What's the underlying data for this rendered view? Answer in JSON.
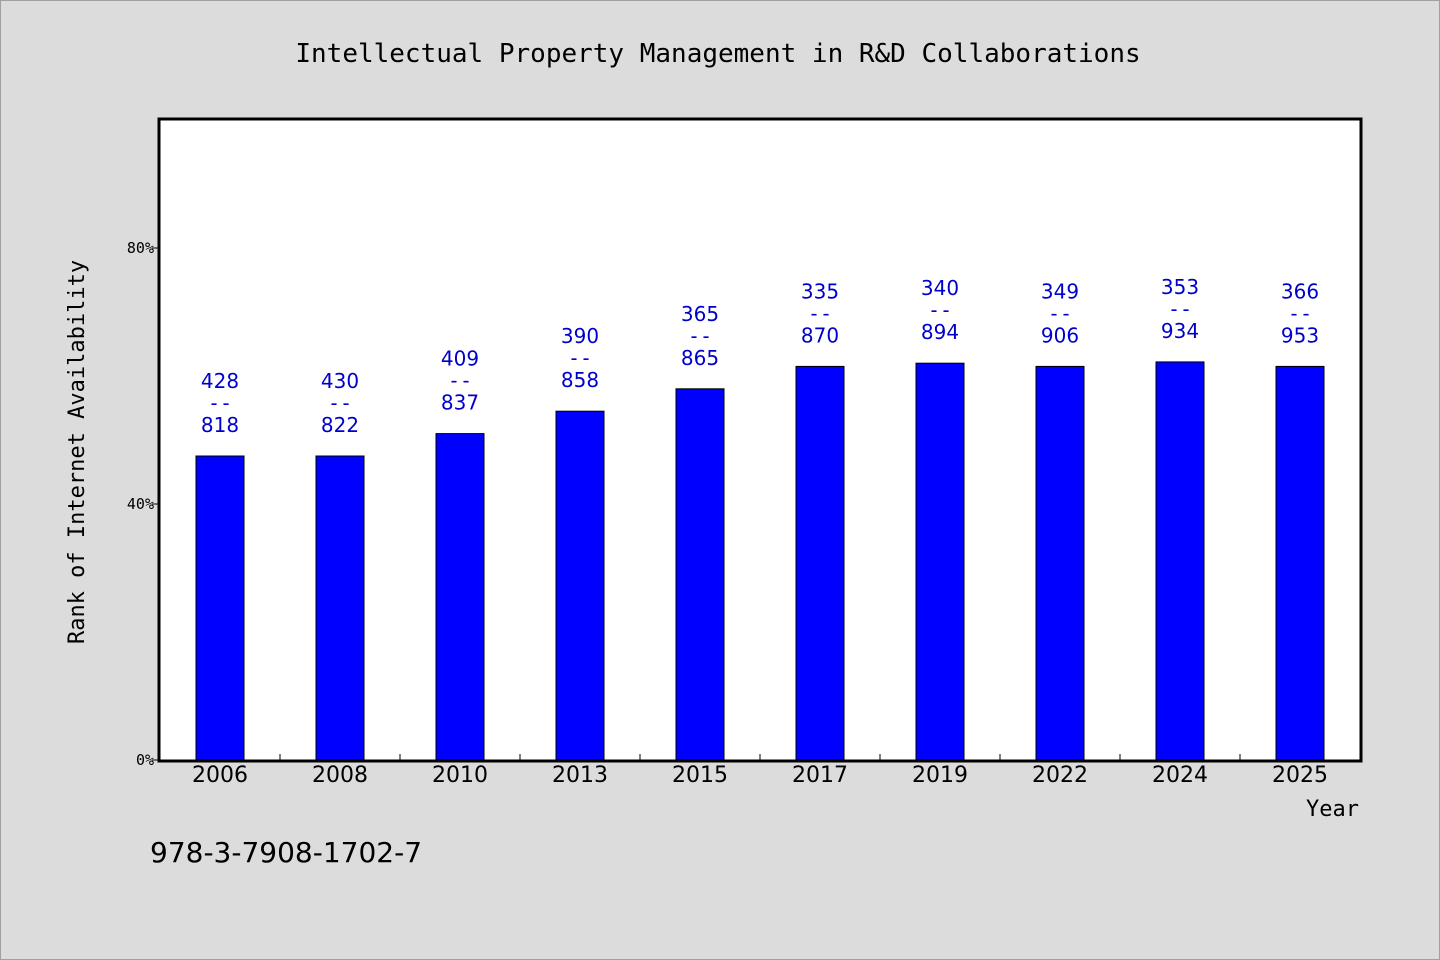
{
  "chart_data": {
    "type": "bar",
    "title": "Intellectual Property Management in R&D Collaborations",
    "xlabel": "Year",
    "ylabel": "Rank of Internet Availability",
    "categories": [
      "2006",
      "2008",
      "2010",
      "2013",
      "2015",
      "2017",
      "2019",
      "2022",
      "2024",
      "2025"
    ],
    "values": [
      47.5,
      47.5,
      51,
      54.5,
      58,
      61.5,
      62,
      61.5,
      62.2,
      61.5
    ],
    "data_labels": [
      {
        "top": "428",
        "sep": "--",
        "bottom": "818"
      },
      {
        "top": "430",
        "sep": "--",
        "bottom": "822"
      },
      {
        "top": "409",
        "sep": "--",
        "bottom": "837"
      },
      {
        "top": "390",
        "sep": "--",
        "bottom": "858"
      },
      {
        "top": "365",
        "sep": "--",
        "bottom": "865"
      },
      {
        "top": "335",
        "sep": "--",
        "bottom": "870"
      },
      {
        "top": "340",
        "sep": "--",
        "bottom": "894"
      },
      {
        "top": "349",
        "sep": "--",
        "bottom": "906"
      },
      {
        "top": "353",
        "sep": "--",
        "bottom": "934"
      },
      {
        "top": "366",
        "sep": "--",
        "bottom": "953"
      }
    ],
    "yticks": [
      0,
      40,
      80
    ],
    "ytick_labels": [
      "0%",
      "40%",
      "80%"
    ],
    "ylim": [
      0,
      100
    ],
    "grid": false,
    "bar_color": "#0000ff",
    "label_color": "#0000cc"
  },
  "footnote": "978-3-7908-1702-7"
}
